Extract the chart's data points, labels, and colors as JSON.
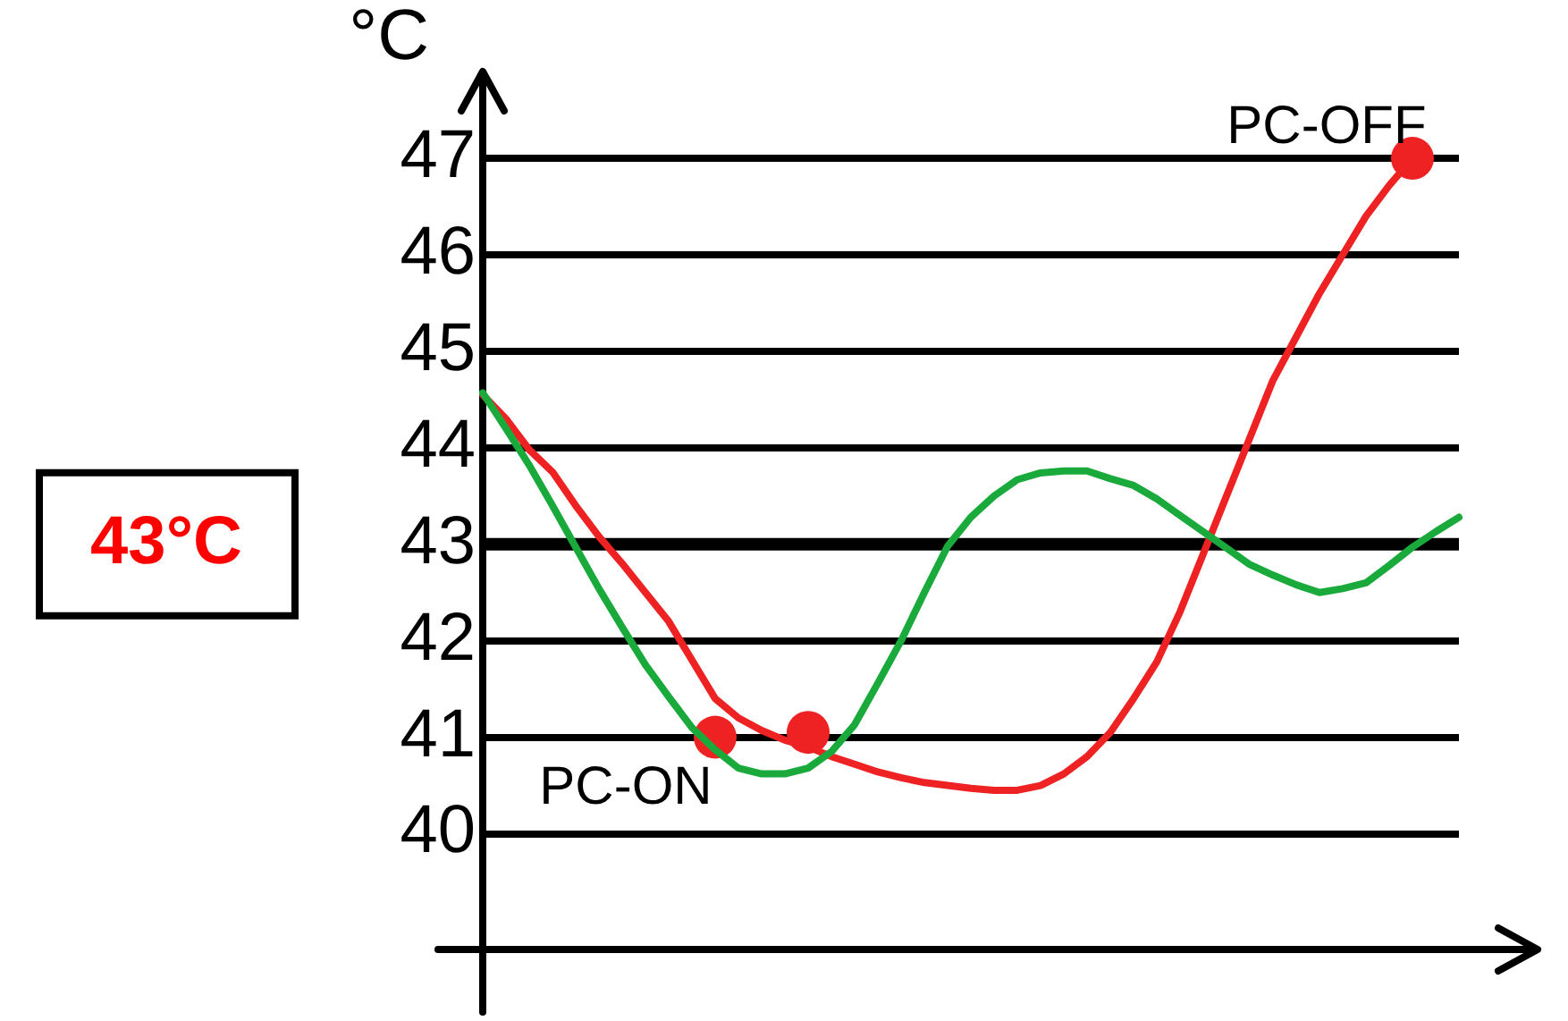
{
  "chart_data": {
    "type": "line",
    "ylabel": "°C",
    "categories": [
      null,
      null,
      null,
      null,
      null,
      null,
      null,
      null,
      null,
      null,
      null,
      null,
      null,
      null,
      null,
      null,
      null,
      null,
      null,
      null,
      null,
      null,
      null,
      null,
      null,
      null,
      null,
      null,
      null,
      null,
      null,
      null,
      null,
      null,
      null,
      null,
      null,
      null,
      null,
      null,
      null,
      null,
      null
    ],
    "ylim": [
      38.8,
      47.9
    ],
    "yticks": [
      40,
      41,
      42,
      43,
      44,
      45,
      46,
      47
    ],
    "tick_labels": "y",
    "grid": "y",
    "legend": false,
    "marker": "none",
    "line_style": "solid",
    "series": [
      {
        "color": "#1aaa3c",
        "values": [
          44.57,
          44.2,
          43.82,
          43.4,
          42.97,
          42.54,
          42.14,
          41.75,
          41.42,
          41.1,
          40.87,
          40.68,
          40.62,
          40.62,
          40.68,
          40.85,
          41.13,
          41.56,
          42.0,
          42.5,
          42.98,
          43.28,
          43.5,
          43.67,
          43.74,
          43.76,
          43.76,
          43.68,
          43.61,
          43.47,
          43.3,
          43.13,
          42.96,
          42.79,
          42.68,
          42.58,
          42.5,
          42.54,
          42.6,
          42.78,
          42.97,
          43.13,
          43.28
        ]
      },
      {
        "color": "#ee2222",
        "values": [
          44.55,
          44.3,
          43.98,
          43.75,
          43.4,
          43.08,
          42.8,
          42.5,
          42.2,
          41.8,
          41.4,
          41.2,
          41.07,
          40.97,
          40.9,
          40.8,
          40.72,
          40.64,
          40.58,
          40.53,
          40.5,
          40.47,
          40.45,
          40.45,
          40.5,
          40.62,
          40.8,
          41.05,
          41.4,
          41.78,
          42.3,
          42.9,
          43.5,
          44.1,
          44.7,
          45.15,
          45.6,
          46.0,
          46.4,
          46.72,
          47.0,
          null,
          null
        ]
      },
      {
        "type": "scatter",
        "marker": "circle",
        "color": "#ee2222",
        "values": [
          null,
          null,
          null,
          null,
          null,
          null,
          null,
          null,
          null,
          null,
          41.0,
          null,
          null,
          null,
          41.05,
          null,
          null,
          null,
          null,
          null,
          null,
          null,
          null,
          null,
          null,
          null,
          null,
          null,
          null,
          null,
          null,
          null,
          null,
          null,
          null,
          null,
          null,
          null,
          null,
          null,
          47.0,
          null,
          null
        ]
      }
    ],
    "ref_lines": [
      {
        "axis": "y",
        "value": 43,
        "color": "#000000"
      }
    ],
    "annotations": [
      "43°C",
      "PC-ON",
      "PC-OFF"
    ]
  }
}
